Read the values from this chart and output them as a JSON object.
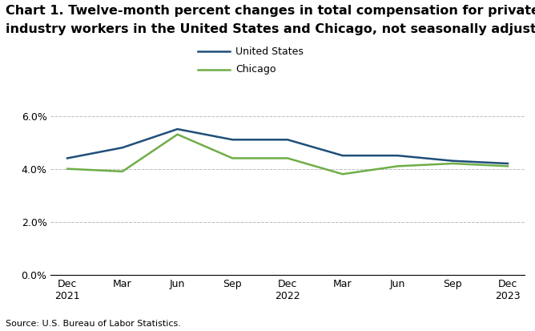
{
  "title_line1": "Chart 1. Twelve-month percent changes in total compensation for private",
  "title_line2": "industry workers in the United States and Chicago, not seasonally adjusted",
  "source": "Source: U.S. Bureau of Labor Statistics.",
  "x_labels": [
    "Dec\n2021",
    "Mar",
    "Jun",
    "Sep",
    "Dec\n2022",
    "Mar",
    "Jun",
    "Sep",
    "Dec\n2023"
  ],
  "us_values": [
    4.4,
    4.8,
    5.5,
    5.1,
    5.1,
    4.5,
    4.5,
    4.3,
    4.2
  ],
  "chicago_values": [
    4.0,
    3.9,
    5.3,
    4.4,
    4.4,
    3.8,
    4.1,
    4.2,
    4.1
  ],
  "us_color": "#1F4E79",
  "chicago_color": "#70AD47",
  "us_label": "United States",
  "chicago_label": "Chicago",
  "ylim": [
    0.0,
    6.5
  ],
  "yticks": [
    0.0,
    2.0,
    4.0,
    6.0
  ],
  "background_color": "#FFFFFF",
  "grid_color": "#BBBBBB",
  "line_width": 1.8,
  "title_fontsize": 11.5,
  "tick_fontsize": 9
}
